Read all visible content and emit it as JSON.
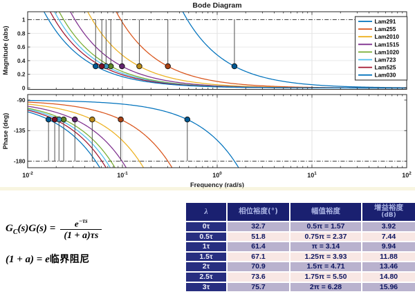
{
  "chart_data": {
    "type": "line",
    "title": "Bode Diagram",
    "x_axis": {
      "label": "Frequency  (rad/s)",
      "scale": "log",
      "range": [
        0.01,
        100
      ],
      "ticks": [
        {
          "base": "10",
          "exp": "-2",
          "value": 0.01
        },
        {
          "base": "10",
          "exp": "-1",
          "value": 0.1
        },
        {
          "base": "10",
          "exp": "0",
          "value": 1
        },
        {
          "base": "10",
          "exp": "1",
          "value": 10
        },
        {
          "base": "10",
          "exp": "2",
          "value": 100
        }
      ]
    },
    "subplots": [
      {
        "id": "magnitude",
        "ylabel": "Magnitude (abs)",
        "ylim": [
          0,
          1.12
        ],
        "yticks": [
          {
            "label": "1",
            "value": 1
          },
          {
            "label": "0.8",
            "value": 0.8
          },
          {
            "label": "0.6",
            "value": 0.6
          },
          {
            "label": "0.4",
            "value": 0.4
          },
          {
            "label": "0.2",
            "value": 0.2
          },
          {
            "label": "0",
            "value": 0
          }
        ],
        "grid_y": [
          0.2,
          0.4,
          0.6,
          0.8
        ],
        "reference_line": {
          "value": 1,
          "style": "dash-dot"
        }
      },
      {
        "id": "phase",
        "ylabel": "Phase (deg)",
        "ylim": [
          -190,
          -82
        ],
        "yticks": [
          {
            "label": "-90",
            "value": -90
          },
          {
            "label": "-135",
            "value": -135
          },
          {
            "label": "-180",
            "value": -180
          }
        ],
        "grid_y": [
          -135
        ],
        "reference_line": {
          "value": -180,
          "style": "dash-dot"
        }
      }
    ],
    "model": {
      "magnitude": "|G(jw)| = wc / w",
      "phase_deg": "arg G(jw) = -90 - (90/pi)*(w/wc)",
      "gain_margin": 3.14,
      "phase_margin_deg": 61.4,
      "magnitude_marker_value": 0.318,
      "phase_marker_value_deg": -118.65
    },
    "series": [
      {
        "name": "Lam291",
        "color": "#0072BD",
        "wc": 0.484
      },
      {
        "name": "Lam255",
        "color": "#D95319",
        "wc": 0.096
      },
      {
        "name": "Lam2010",
        "color": "#EDB120",
        "wc": 0.048
      },
      {
        "name": "Lam1515",
        "color": "#7E2F8E",
        "wc": 0.0315
      },
      {
        "name": "Lam1020",
        "color": "#77AC30",
        "wc": 0.024
      },
      {
        "name": "Lam723",
        "color": "#4DBEEE",
        "wc": 0.0214
      },
      {
        "name": "Lam525",
        "color": "#A2142F",
        "wc": 0.0193
      },
      {
        "name": "Lam030",
        "color": "#0072BD",
        "wc": 0.0166
      }
    ],
    "legend": {
      "position": "top-right",
      "entries": [
        "Lam291",
        "Lam255",
        "Lam2010",
        "Lam1515",
        "Lam1020",
        "Lam723",
        "Lam525",
        "Lam030"
      ]
    }
  },
  "formula": {
    "lhs_g1": "G",
    "lhs_sub": "C",
    "lhs_rest": "(s)G(s) =",
    "num_base": "e",
    "num_exp": "−τs",
    "den": "(1 + a)τs",
    "line2_main": "(1 + a) = e",
    "line2_cjk": "临界阻尼"
  },
  "table": {
    "headers": [
      {
        "text": "λ",
        "sub": ""
      },
      {
        "text": "相位裕度(°)",
        "sub": ""
      },
      {
        "text": "幅值裕度",
        "sub": ""
      },
      {
        "text": "增益裕度",
        "sub": "(dB)"
      }
    ],
    "rows": [
      {
        "label": "0τ",
        "phase_margin": "32.7",
        "amp_margin": "0.5π = 1.57",
        "gain_margin_db": "3.92"
      },
      {
        "label": "0.5τ",
        "phase_margin": "51.8",
        "amp_margin": "0.75π = 2.37",
        "gain_margin_db": "7.44"
      },
      {
        "label": "1τ",
        "phase_margin": "61.4",
        "amp_margin": "π = 3.14",
        "gain_margin_db": "9.94"
      },
      {
        "label": "1.5τ",
        "phase_margin": "67.1",
        "amp_margin": "1.25π = 3.93",
        "gain_margin_db": "11.88"
      },
      {
        "label": "2τ",
        "phase_margin": "70.9",
        "amp_margin": "1.5π = 4.71",
        "gain_margin_db": "13.46"
      },
      {
        "label": "2.5τ",
        "phase_margin": "73.6",
        "amp_margin": "1.75π = 5.50",
        "gain_margin_db": "14.80"
      },
      {
        "label": "3τ",
        "phase_margin": "75.7",
        "amp_margin": "2π = 6.28",
        "gain_margin_db": "15.96"
      }
    ],
    "colors": {
      "header_bg": "#1A2070",
      "header_text": "#A9B2E2",
      "label_bg": "#272E80",
      "label_text": "#EFEFF8",
      "row_even_bg": "#B9B2CE",
      "row_odd_bg": "#F8E7E4",
      "cell_text": "#0D1560"
    }
  }
}
